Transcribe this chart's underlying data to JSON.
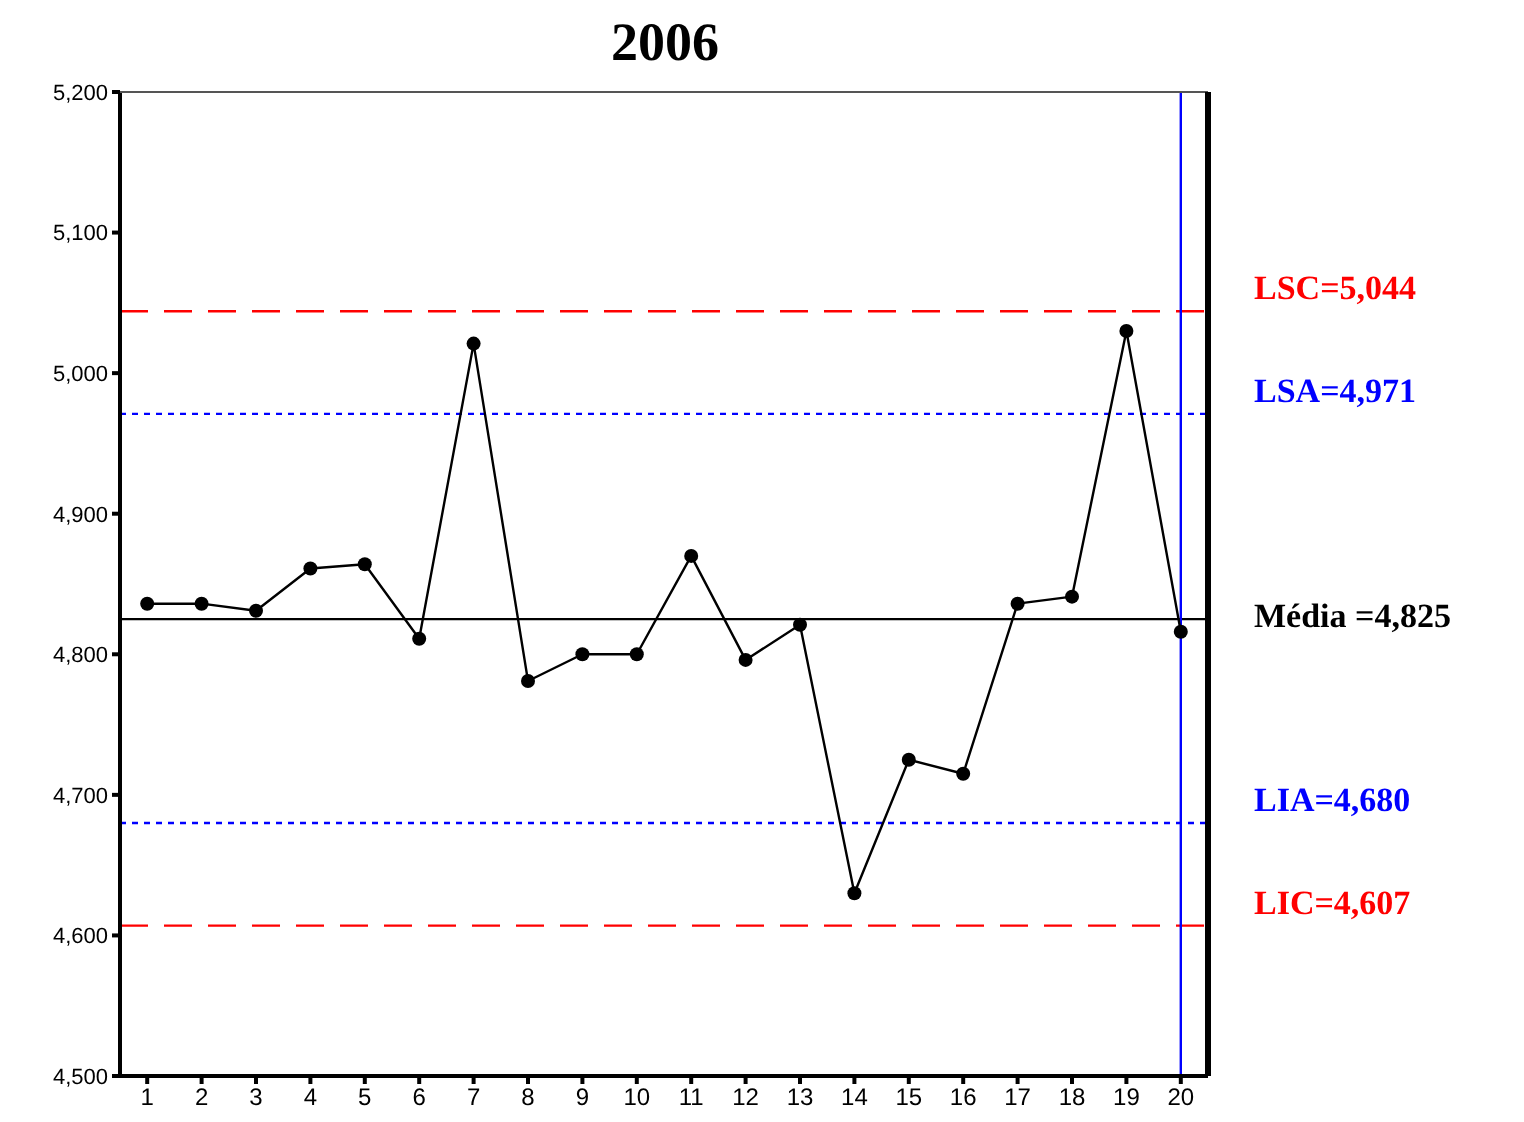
{
  "chart_data": {
    "type": "line",
    "title": "2006",
    "x": [
      1,
      2,
      3,
      4,
      5,
      6,
      7,
      8,
      9,
      10,
      11,
      12,
      13,
      14,
      15,
      16,
      17,
      18,
      19,
      20
    ],
    "xlim": [
      0.5,
      20.5
    ],
    "xticks": [
      1,
      2,
      3,
      4,
      5,
      6,
      7,
      8,
      9,
      10,
      11,
      12,
      13,
      14,
      15,
      16,
      17,
      18,
      19,
      20
    ],
    "ylim": [
      4500,
      5200
    ],
    "yticks": [
      {
        "value": 4500,
        "label": "4,500"
      },
      {
        "value": 4600,
        "label": "4,600"
      },
      {
        "value": 4700,
        "label": "4,700"
      },
      {
        "value": 4800,
        "label": "4,800"
      },
      {
        "value": 4900,
        "label": "4,900"
      },
      {
        "value": 5000,
        "label": "5,000"
      },
      {
        "value": 5100,
        "label": "5,100"
      },
      {
        "value": 5200,
        "label": "5,200"
      }
    ],
    "series": [
      {
        "color": "#000000",
        "values": [
          4836,
          4836,
          4831,
          4861,
          4864,
          4811,
          5021,
          4781,
          4800,
          4800,
          4870,
          4796,
          4821,
          4630,
          4725,
          4715,
          4836,
          4841,
          5030,
          4816
        ]
      }
    ],
    "marker": "circle",
    "line_style": "solid",
    "grid": false,
    "ref_lines": [
      {
        "axis": "y",
        "value": 5044,
        "label": "LSC=5,044",
        "color": "#ff0000",
        "line_style": "dashed"
      },
      {
        "axis": "y",
        "value": 4971,
        "label": "LSA=4,971",
        "color": "#0000ff",
        "line_style": "dotted"
      },
      {
        "axis": "y",
        "value": 4825,
        "label": "Média =4,825",
        "color": "#000000",
        "line_style": "solid"
      },
      {
        "axis": "y",
        "value": 4680,
        "label": "LIA=4,680",
        "color": "#0000ff",
        "line_style": "dotted"
      },
      {
        "axis": "y",
        "value": 4607,
        "label": "LIC=4,607",
        "color": "#ff0000",
        "line_style": "dashed"
      },
      {
        "axis": "x",
        "value": 20,
        "label": null,
        "color": "#0000ff",
        "line_style": "solid"
      }
    ]
  }
}
